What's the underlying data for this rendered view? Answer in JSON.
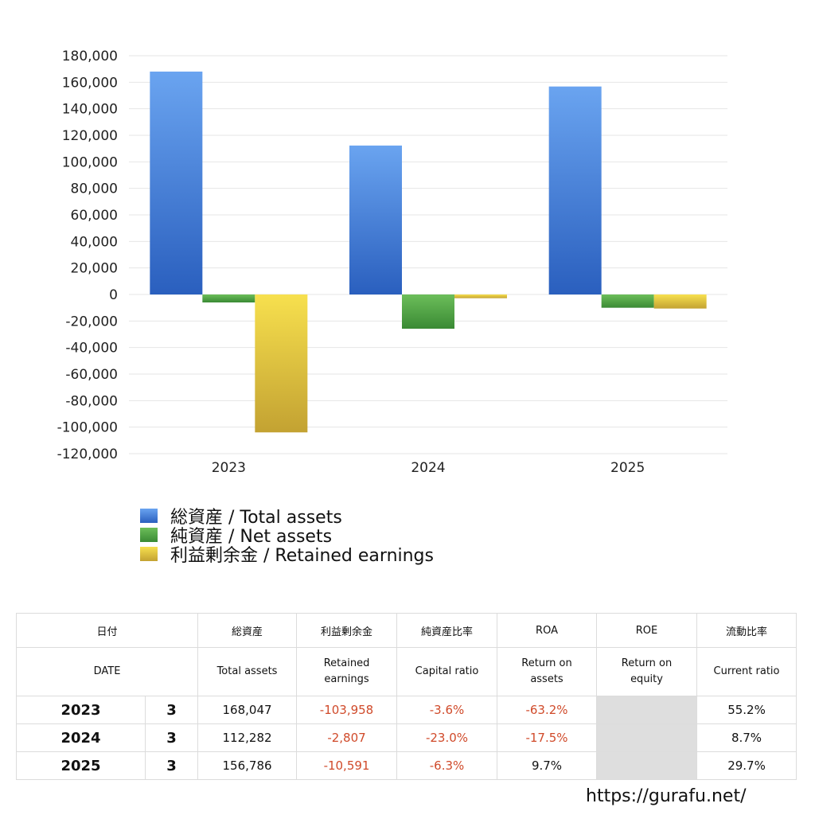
{
  "chart_data": {
    "type": "bar",
    "categories": [
      "2023",
      "2024",
      "2025"
    ],
    "series": [
      {
        "name": "総資産 / Total assets",
        "color": "#3a72d4",
        "values": [
          168047,
          112282,
          156786
        ]
      },
      {
        "name": "純資産 / Net assets",
        "color": "#4a9a3e",
        "values": [
          -6000,
          -25800,
          -10000
        ]
      },
      {
        "name": "利益剰余金 / Retained earnings",
        "color": "#d9be3c",
        "values": [
          -103958,
          -2807,
          -10591
        ]
      }
    ],
    "ylim": [
      -120000,
      180000
    ],
    "yticks": [
      "180,000",
      "160,000",
      "140,000",
      "120,000",
      "100,000",
      "80,000",
      "60,000",
      "40,000",
      "20,000",
      "0",
      "-20,000",
      "-40,000",
      "-60,000",
      "-80,000",
      "-100,000",
      "-120,000"
    ],
    "ytick_values": [
      180000,
      160000,
      140000,
      120000,
      100000,
      80000,
      60000,
      40000,
      20000,
      0,
      -20000,
      -40000,
      -60000,
      -80000,
      -100000,
      -120000
    ],
    "grid": true,
    "legend_position": "bottom-left"
  },
  "table": {
    "header_jp": {
      "date": "日付",
      "total_assets": "総資産",
      "retained": "利益剰余金",
      "capital_ratio": "純資産比率",
      "roa": "ROA",
      "roe": "ROE",
      "current_ratio": "流動比率"
    },
    "header_en": {
      "date": "DATE",
      "total_assets": "Total assets",
      "retained_1": "Retained",
      "retained_2": "earnings",
      "capital_ratio": "Capital ratio",
      "roa_1": "Return on",
      "roa_2": "assets",
      "roe_1": "Return on",
      "roe_2": "equity",
      "current_ratio": "Current ratio"
    },
    "rows": [
      {
        "year": "2023",
        "month": "3",
        "total_assets": "168,047",
        "retained": "-103,958",
        "capital_ratio": "-3.6%",
        "roa": "-63.2%",
        "roe": "",
        "current_ratio": "55.2%"
      },
      {
        "year": "2024",
        "month": "3",
        "total_assets": "112,282",
        "retained": "-2,807",
        "capital_ratio": "-23.0%",
        "roa": "-17.5%",
        "roe": "",
        "current_ratio": "8.7%"
      },
      {
        "year": "2025",
        "month": "3",
        "total_assets": "156,786",
        "retained": "-10,591",
        "capital_ratio": "-6.3%",
        "roa": "9.7%",
        "roe": "",
        "current_ratio": "29.7%"
      }
    ]
  },
  "footer": {
    "url": "https://gurafu.net/"
  }
}
